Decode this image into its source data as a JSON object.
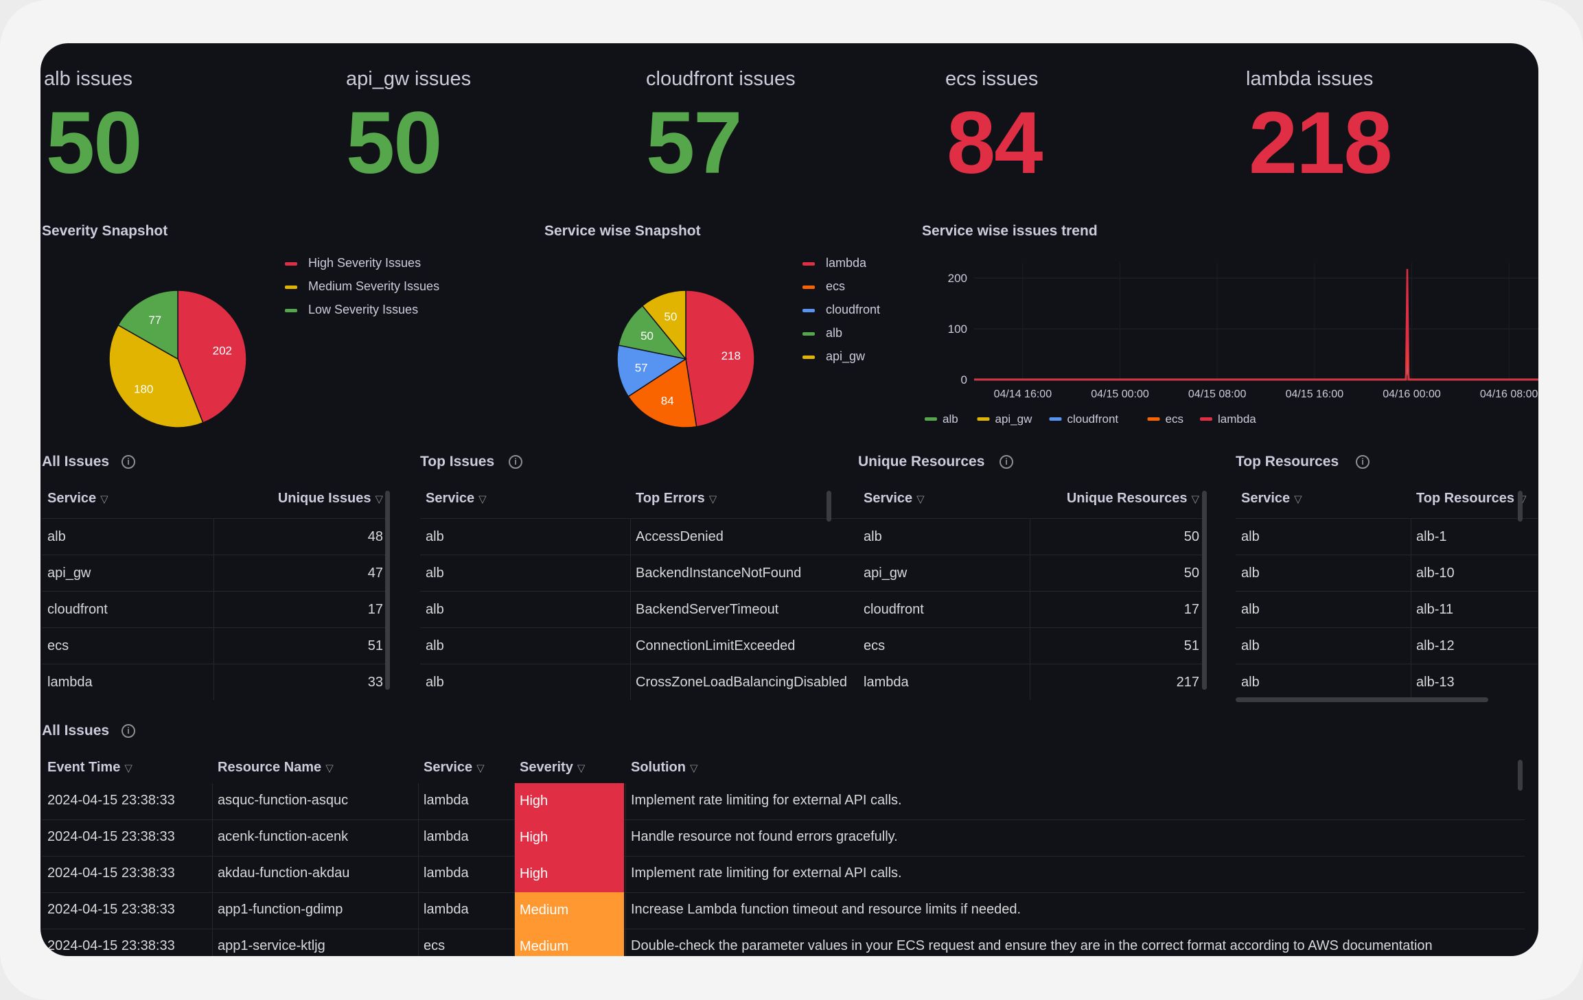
{
  "colors": {
    "green": "#56a64b",
    "red": "#e02f44",
    "yellow": "#e0b400",
    "orange": "#fa6400",
    "blue": "#3274d9",
    "high": "#e02f44",
    "medium": "#ff9830"
  },
  "stats": [
    {
      "title": "alb issues",
      "value": "50",
      "color": "#56a64b"
    },
    {
      "title": "api_gw issues",
      "value": "50",
      "color": "#56a64b"
    },
    {
      "title": "cloudfront issues",
      "value": "57",
      "color": "#56a64b"
    },
    {
      "title": "ecs issues",
      "value": "84",
      "color": "#e02f44"
    },
    {
      "title": "lambda issues",
      "value": "218",
      "color": "#e02f44"
    }
  ],
  "panels": {
    "severity_title": "Severity Snapshot",
    "service_title": "Service wise Snapshot",
    "trend_title": "Service wise issues trend",
    "all_issues_title": "All Issues",
    "top_issues_title": "Top Issues",
    "unique_resources_title": "Unique Resources",
    "top_resources_title": "Top Resources",
    "all_issues_bottom_title": "All Issues"
  },
  "chart_data": [
    {
      "type": "pie",
      "title": "Severity Snapshot",
      "categories": [
        "High Severity Issues",
        "Medium Severity Issues",
        "Low Severity Issues"
      ],
      "values": [
        202,
        180,
        77
      ],
      "colors": [
        "#e02f44",
        "#e0b400",
        "#56a64b"
      ],
      "legend_position": "right"
    },
    {
      "type": "pie",
      "title": "Service wise Snapshot",
      "categories": [
        "lambda",
        "ecs",
        "cloudfront",
        "alb",
        "api_gw"
      ],
      "values": [
        218,
        84,
        57,
        50,
        50
      ],
      "colors": [
        "#e02f44",
        "#fa6400",
        "#5794f2",
        "#56a64b",
        "#e0b400"
      ],
      "legend_position": "right"
    },
    {
      "type": "line",
      "title": "Service wise issues trend",
      "x_ticks": [
        "04/14 16:00",
        "04/15 00:00",
        "04/15 08:00",
        "04/15 16:00",
        "04/16 00:00",
        "04/16 08:00"
      ],
      "y_ticks": [
        "0",
        "100",
        "200"
      ],
      "ylim": [
        0,
        230
      ],
      "grid": true,
      "legend_position": "bottom",
      "series": [
        {
          "name": "alb",
          "color": "#56a64b",
          "x": [
            "04/14 12:00",
            "04/15 23:38",
            "04/16 12:00"
          ],
          "values": [
            0,
            50,
            0
          ]
        },
        {
          "name": "api_gw",
          "color": "#e0b400",
          "x": [
            "04/14 12:00",
            "04/15 23:38",
            "04/16 12:00"
          ],
          "values": [
            0,
            50,
            0
          ]
        },
        {
          "name": "cloudfront",
          "color": "#5794f2",
          "x": [
            "04/14 12:00",
            "04/15 23:38",
            "04/16 12:00"
          ],
          "values": [
            0,
            57,
            0
          ]
        },
        {
          "name": "ecs",
          "color": "#fa6400",
          "x": [
            "04/14 12:00",
            "04/15 23:38",
            "04/16 12:00"
          ],
          "values": [
            0,
            84,
            0
          ]
        },
        {
          "name": "lambda",
          "color": "#e02f44",
          "x": [
            "04/14 12:00",
            "04/15 23:38",
            "04/16 12:00"
          ],
          "values": [
            0,
            218,
            0
          ]
        }
      ]
    }
  ],
  "all_issues_table": {
    "headers": [
      "Service",
      "Unique Issues"
    ],
    "rows": [
      [
        "alb",
        "48"
      ],
      [
        "api_gw",
        "47"
      ],
      [
        "cloudfront",
        "17"
      ],
      [
        "ecs",
        "51"
      ],
      [
        "lambda",
        "33"
      ]
    ]
  },
  "top_issues_table": {
    "headers": [
      "Service",
      "Top Errors"
    ],
    "rows": [
      [
        "alb",
        "AccessDenied"
      ],
      [
        "alb",
        "BackendInstanceNotFound"
      ],
      [
        "alb",
        "BackendServerTimeout"
      ],
      [
        "alb",
        "ConnectionLimitExceeded"
      ],
      [
        "alb",
        "CrossZoneLoadBalancingDisabled"
      ]
    ]
  },
  "unique_resources_table": {
    "headers": [
      "Service",
      "Unique Resources"
    ],
    "rows": [
      [
        "alb",
        "50"
      ],
      [
        "api_gw",
        "50"
      ],
      [
        "cloudfront",
        "17"
      ],
      [
        "ecs",
        "51"
      ],
      [
        "lambda",
        "217"
      ]
    ]
  },
  "top_resources_table": {
    "headers": [
      "Service",
      "Top Resources"
    ],
    "rows": [
      [
        "alb",
        "alb-1"
      ],
      [
        "alb",
        "alb-10"
      ],
      [
        "alb",
        "alb-11"
      ],
      [
        "alb",
        "alb-12"
      ],
      [
        "alb",
        "alb-13"
      ]
    ]
  },
  "issues_log_table": {
    "headers": [
      "Event Time",
      "Resource Name",
      "Service",
      "Severity",
      "Solution"
    ],
    "rows": [
      {
        "time": "2024-04-15 23:38:33",
        "resource": "asquc-function-asquc",
        "service": "lambda",
        "severity": "High",
        "solution": "Implement rate limiting for external API calls."
      },
      {
        "time": "2024-04-15 23:38:33",
        "resource": "acenk-function-acenk",
        "service": "lambda",
        "severity": "High",
        "solution": "Handle resource not found errors gracefully."
      },
      {
        "time": "2024-04-15 23:38:33",
        "resource": "akdau-function-akdau",
        "service": "lambda",
        "severity": "High",
        "solution": "Implement rate limiting for external API calls."
      },
      {
        "time": "2024-04-15 23:38:33",
        "resource": "app1-function-gdimp",
        "service": "lambda",
        "severity": "Medium",
        "solution": "Increase Lambda function timeout and resource limits if needed."
      },
      {
        "time": "2024-04-15 23:38:33",
        "resource": "app1-service-ktljg",
        "service": "ecs",
        "severity": "Medium",
        "solution": "Double-check the parameter values in your ECS request and ensure they are in the correct format according to AWS documentation"
      }
    ]
  }
}
